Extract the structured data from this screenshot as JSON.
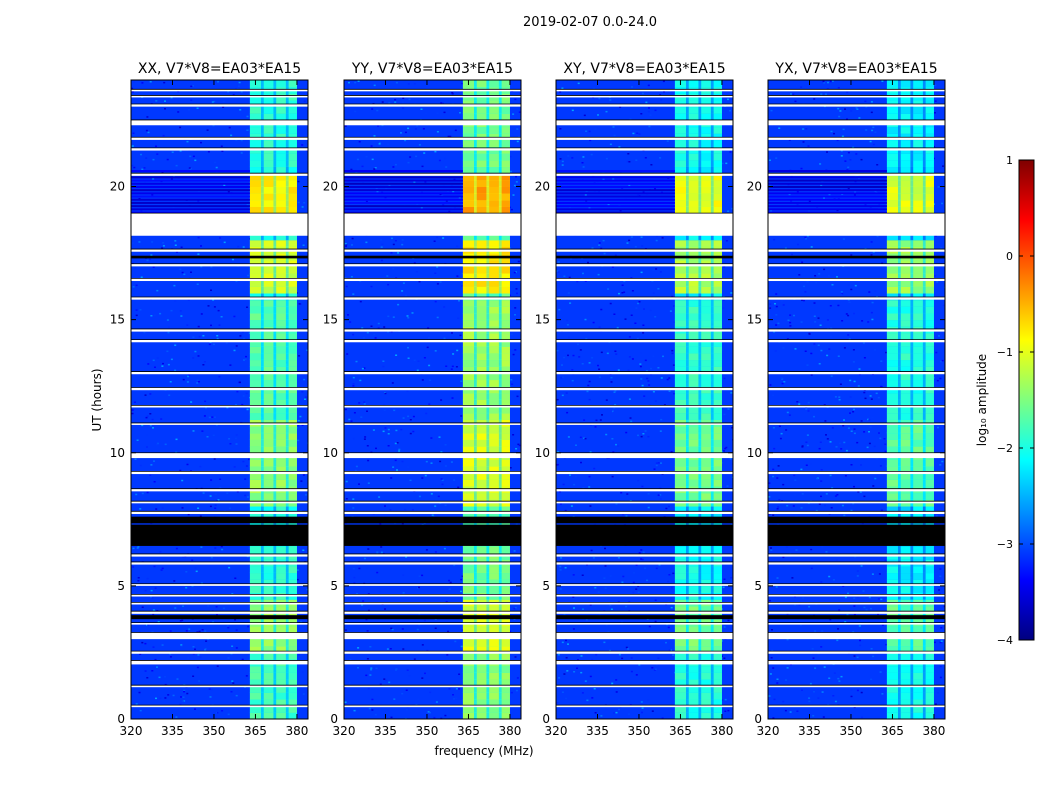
{
  "chart_data": {
    "type": "heatmap",
    "suptitle": "2019-02-07 0.0-24.0",
    "xlabel": "frequency (MHz)",
    "ylabel": "UT (hours)",
    "xlim": [
      320,
      384
    ],
    "ylim": [
      0,
      24
    ],
    "xticks": [
      320,
      335,
      350,
      365,
      380
    ],
    "yticks": [
      0,
      5,
      10,
      15,
      20
    ],
    "xtick_labels": [
      "320",
      "335",
      "350",
      "365",
      "380"
    ],
    "ytick_labels": [
      "0",
      "5",
      "10",
      "15",
      "20"
    ],
    "panels": [
      {
        "title": "XX, V7*V8=EA03*EA15",
        "polarization": "XX"
      },
      {
        "title": "YY, V7*V8=EA03*EA15",
        "polarization": "YY"
      },
      {
        "title": "XY, V7*V8=EA03*EA15",
        "polarization": "XY"
      },
      {
        "title": "YX, V7*V8=EA03*EA15",
        "polarization": "YX"
      }
    ],
    "colorbar": {
      "label": "log₁₀ amplitude",
      "range": [
        -4,
        1
      ],
      "ticks": [
        1,
        0,
        -1,
        -2,
        -3,
        -4
      ],
      "tick_labels": [
        "1",
        "0",
        "−1",
        "−2",
        "−3",
        "−4"
      ],
      "colormap": "jet",
      "colormap_stops": [
        "#00007f",
        "#0000ff",
        "#007fff",
        "#00ffff",
        "#7fff7f",
        "#ffff00",
        "#ff7f00",
        "#ff0000",
        "#7f0000"
      ]
    },
    "background_level": -3.1,
    "signal_band_mhz": [
      363,
      380
    ],
    "signal_channels_mhz": [
      [
        363,
        367
      ],
      [
        368,
        371.5
      ],
      [
        372.5,
        376
      ],
      [
        377,
        380
      ]
    ],
    "signal_level_by_time": [
      {
        "t": [
          0,
          2.4
        ],
        "level": -1.8
      },
      {
        "t": [
          2.5,
          4.5
        ],
        "level": -1.4
      },
      {
        "t": [
          4.6,
          6.5
        ],
        "level": -1.9
      },
      {
        "t": [
          8.0,
          11.2
        ],
        "level": -1.4
      },
      {
        "t": [
          11.3,
          15.8
        ],
        "level": -1.7
      },
      {
        "t": [
          15.9,
          18.1
        ],
        "level": -1.1
      },
      {
        "t": [
          19.0,
          20.6
        ],
        "level": -0.8
      },
      {
        "t": [
          20.7,
          24.0
        ],
        "level": -1.9
      }
    ],
    "flagged_gaps_ut": [
      [
        0.45,
        0.52
      ],
      [
        1.2,
        1.27
      ],
      [
        2.05,
        2.2
      ],
      [
        2.45,
        2.55
      ],
      [
        3.0,
        3.25
      ],
      [
        3.55,
        3.62
      ],
      [
        3.95,
        4.05
      ],
      [
        4.3,
        4.38
      ],
      [
        4.6,
        4.68
      ],
      [
        5.0,
        5.08
      ],
      [
        5.8,
        5.9
      ],
      [
        6.1,
        6.2
      ],
      [
        7.7,
        7.8
      ],
      [
        8.1,
        8.18
      ],
      [
        8.55,
        8.65
      ],
      [
        9.2,
        9.3
      ],
      [
        9.8,
        10.0
      ],
      [
        11.05,
        11.12
      ],
      [
        11.7,
        11.78
      ],
      [
        12.35,
        12.45
      ],
      [
        12.95,
        13.05
      ],
      [
        14.15,
        14.25
      ],
      [
        14.55,
        14.65
      ],
      [
        15.75,
        15.85
      ],
      [
        16.45,
        16.55
      ],
      [
        17.0,
        17.1
      ],
      [
        17.55,
        17.65
      ],
      [
        18.15,
        19.0
      ],
      [
        20.4,
        20.5
      ],
      [
        21.35,
        21.45
      ],
      [
        21.75,
        21.85
      ],
      [
        22.3,
        22.5
      ],
      [
        23.0,
        23.1
      ],
      [
        23.35,
        23.42
      ],
      [
        23.6,
        23.65
      ]
    ],
    "no_data_black_ut": [
      [
        6.5,
        7.3
      ],
      [
        7.35,
        7.6
      ],
      [
        3.75,
        3.9
      ],
      [
        17.3,
        17.4
      ]
    ]
  }
}
